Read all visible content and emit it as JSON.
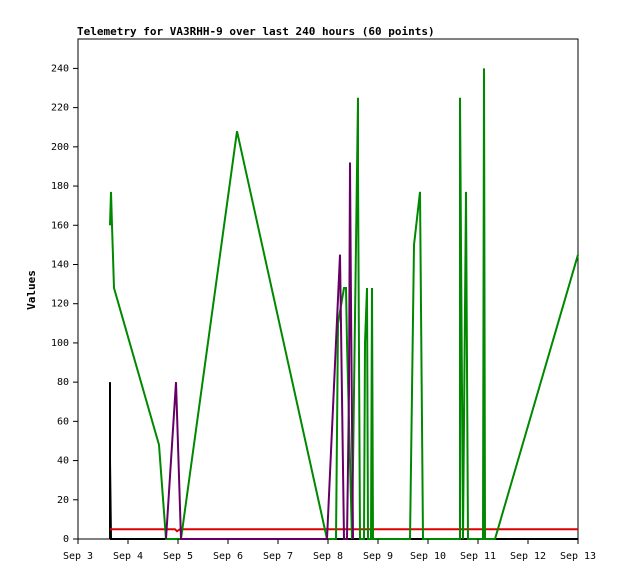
{
  "chart_data": {
    "type": "line",
    "title": "Telemetry for VA3RHH-9 over last 240 hours (60 points)",
    "ylabel": "Values",
    "xlabel": "",
    "ylim": [
      0,
      255
    ],
    "xlim": [
      0,
      10
    ],
    "y_ticks": [
      0,
      20,
      40,
      60,
      80,
      100,
      120,
      140,
      160,
      180,
      200,
      220,
      240
    ],
    "x_ticks": [
      {
        "value": 0,
        "label": "Sep 3"
      },
      {
        "value": 1,
        "label": "Sep 4"
      },
      {
        "value": 2,
        "label": "Sep 5"
      },
      {
        "value": 3,
        "label": "Sep 6"
      },
      {
        "value": 4,
        "label": "Sep 7"
      },
      {
        "value": 5,
        "label": "Sep 8"
      },
      {
        "value": 6,
        "label": "Sep 9"
      },
      {
        "value": 7,
        "label": "Sep 10"
      },
      {
        "value": 8,
        "label": "Sep 11"
      },
      {
        "value": 9,
        "label": "Sep 12"
      },
      {
        "value": 10,
        "label": "Sep 13"
      }
    ],
    "grid": false,
    "series": [
      {
        "color": "#000000",
        "points": [
          [
            0.64,
            0
          ],
          [
            0.64,
            80
          ],
          [
            0.64,
            40
          ],
          [
            0.66,
            0
          ],
          [
            10,
            0
          ]
        ]
      },
      {
        "color": "#dd0000",
        "points": [
          [
            0.64,
            5
          ],
          [
            1.94,
            5
          ],
          [
            1.98,
            4
          ],
          [
            2.04,
            5
          ],
          [
            10,
            5
          ]
        ]
      },
      {
        "color": "#008800",
        "points": [
          [
            0.64,
            160
          ],
          [
            0.66,
            177
          ],
          [
            0.68,
            160
          ],
          [
            0.72,
            128
          ],
          [
            1.62,
            48
          ],
          [
            1.76,
            0
          ],
          [
            2.06,
            0
          ],
          [
            3.18,
            208
          ],
          [
            4.98,
            0
          ],
          [
            5.16,
            0
          ],
          [
            5.2,
            110
          ],
          [
            5.32,
            128
          ],
          [
            5.36,
            128
          ],
          [
            5.38,
            100
          ],
          [
            5.48,
            0
          ],
          [
            5.6,
            225
          ],
          [
            5.6,
            188
          ],
          [
            5.64,
            0
          ],
          [
            5.72,
            0
          ],
          [
            5.74,
            100
          ],
          [
            5.78,
            128
          ],
          [
            5.8,
            0
          ],
          [
            5.86,
            0
          ],
          [
            5.88,
            128
          ],
          [
            5.9,
            0
          ],
          [
            6.64,
            0
          ],
          [
            6.72,
            150
          ],
          [
            6.84,
            177
          ],
          [
            6.9,
            0
          ],
          [
            7.64,
            0
          ],
          [
            7.64,
            225
          ],
          [
            7.7,
            0
          ],
          [
            7.76,
            177
          ],
          [
            7.8,
            0
          ],
          [
            8.1,
            0
          ],
          [
            8.12,
            240
          ],
          [
            8.14,
            0
          ],
          [
            8.34,
            0
          ],
          [
            10,
            145
          ]
        ]
      },
      {
        "color": "#660066",
        "points": [
          [
            1.76,
            0
          ],
          [
            1.96,
            80
          ],
          [
            2.06,
            0
          ],
          [
            4.98,
            0
          ],
          [
            5.24,
            145
          ],
          [
            5.32,
            0
          ],
          [
            5.38,
            0
          ],
          [
            5.42,
            75
          ],
          [
            5.44,
            192
          ],
          [
            5.46,
            120
          ],
          [
            5.5,
            0
          ]
        ]
      }
    ]
  }
}
